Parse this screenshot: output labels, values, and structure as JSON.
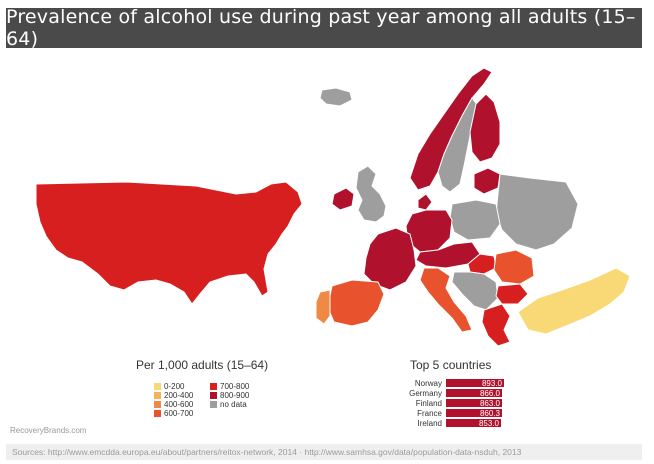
{
  "header": {
    "title": "Prevalence of alcohol use during past year among all adults (15–64)"
  },
  "colors": {
    "range_0_200": "#f9d976",
    "range_200_400": "#f3b35c",
    "range_400_600": "#ef8a45",
    "range_600_700": "#e8532d",
    "range_700_800": "#d71f1f",
    "range_800_900": "#b0112c",
    "no_data": "#9e9e9e"
  },
  "legend": {
    "title": "Per 1,000 adults (15–64)",
    "left_items": [
      {
        "label": "0-200",
        "color": "#f9d976"
      },
      {
        "label": "200-400",
        "color": "#f3b35c"
      },
      {
        "label": "400-600",
        "color": "#ef8a45"
      },
      {
        "label": "600-700",
        "color": "#e8532d"
      }
    ],
    "right_items": [
      {
        "label": "700-800",
        "color": "#d71f1f"
      },
      {
        "label": "800-900",
        "color": "#b0112c"
      },
      {
        "label": "no data",
        "color": "#9e9e9e"
      }
    ]
  },
  "top5": {
    "title": "Top 5 countries",
    "rows": [
      {
        "country": "Norway",
        "value": 893.0,
        "value_label": "893.0"
      },
      {
        "country": "Germany",
        "value": 866.0,
        "value_label": "866.0"
      },
      {
        "country": "Finland",
        "value": 863.0,
        "value_label": "863.0"
      },
      {
        "country": "France",
        "value": 860.3,
        "value_label": "860.3"
      },
      {
        "country": "Ireland",
        "value": 853.0,
        "value_label": "853.0"
      }
    ]
  },
  "map": {
    "regions": [
      {
        "name": "usa",
        "fill": "#d71f1f"
      },
      {
        "name": "iceland",
        "fill": "#9e9e9e"
      },
      {
        "name": "uk",
        "fill": "#9e9e9e"
      },
      {
        "name": "ireland",
        "fill": "#b0112c"
      },
      {
        "name": "norway",
        "fill": "#b0112c"
      },
      {
        "name": "sweden",
        "fill": "#9e9e9e"
      },
      {
        "name": "finland",
        "fill": "#b0112c"
      },
      {
        "name": "baltics",
        "fill": "#b0112c"
      },
      {
        "name": "france",
        "fill": "#b0112c"
      },
      {
        "name": "germany",
        "fill": "#b0112c"
      },
      {
        "name": "spain",
        "fill": "#e8532d"
      },
      {
        "name": "portugal",
        "fill": "#ef8a45"
      },
      {
        "name": "italy",
        "fill": "#e8532d"
      },
      {
        "name": "poland",
        "fill": "#9e9e9e"
      },
      {
        "name": "belarus_ukraine",
        "fill": "#9e9e9e"
      },
      {
        "name": "central_europe",
        "fill": "#b0112c"
      },
      {
        "name": "hungary",
        "fill": "#d71f1f"
      },
      {
        "name": "romania",
        "fill": "#e8532d"
      },
      {
        "name": "balkans",
        "fill": "#9e9e9e"
      },
      {
        "name": "bulgaria",
        "fill": "#d71f1f"
      },
      {
        "name": "greece",
        "fill": "#d71f1f"
      },
      {
        "name": "turkey",
        "fill": "#f9d976"
      },
      {
        "name": "denmark",
        "fill": "#b0112c"
      }
    ]
  },
  "credit": "RecoveryBrands.com",
  "sources": "Sources: http://www.emcdda.europa.eu/about/partners/reitox-network, 2014  ·  http://www.samhsa.gov/data/population-data-nsduh, 2013"
}
